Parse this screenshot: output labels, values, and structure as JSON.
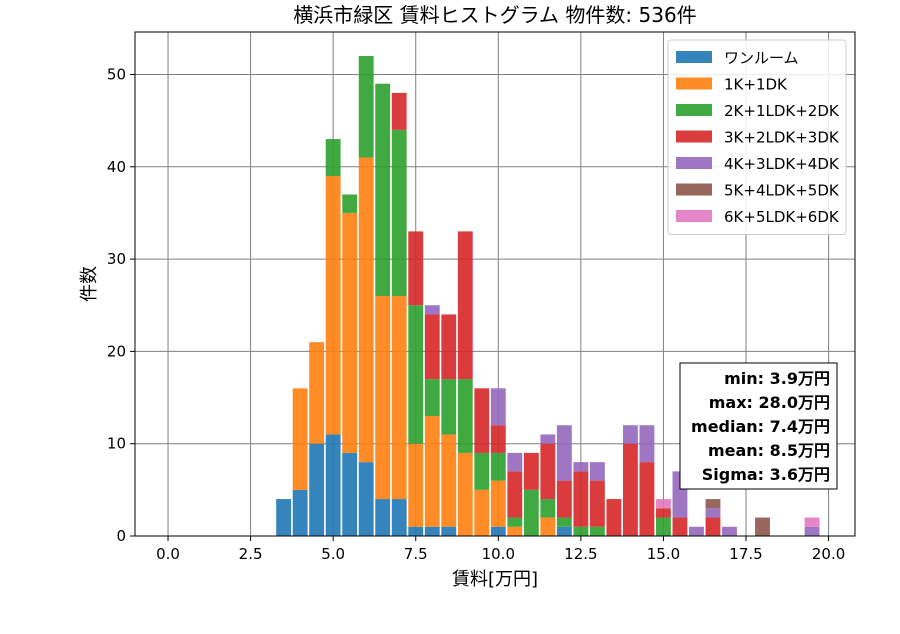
{
  "chart_data": {
    "type": "bar",
    "stacked": true,
    "title": "横浜市緑区 賃料ヒストグラム 物件数: 536件",
    "xlabel": "賃料[万円]",
    "ylabel": "件数",
    "xlim": [
      -1.0,
      20.8
    ],
    "ylim": [
      0,
      54.6
    ],
    "xticks": [
      0.0,
      2.5,
      5.0,
      7.5,
      10.0,
      12.5,
      15.0,
      17.5,
      20.0
    ],
    "xtick_labels": [
      "0.0",
      "2.5",
      "5.0",
      "7.5",
      "10.0",
      "12.5",
      "15.0",
      "17.5",
      "20.0"
    ],
    "yticks": [
      0,
      10,
      20,
      30,
      40,
      50
    ],
    "ytick_labels": [
      "0",
      "10",
      "20",
      "30",
      "40",
      "50"
    ],
    "grid": true,
    "legend_position": "top-right",
    "bin_width": 0.5,
    "x": [
      3.5,
      4.0,
      4.5,
      5.0,
      5.5,
      6.0,
      6.5,
      7.0,
      7.5,
      8.0,
      8.5,
      9.0,
      9.5,
      10.0,
      10.5,
      11.0,
      11.5,
      12.0,
      12.5,
      13.0,
      13.5,
      14.0,
      14.5,
      15.0,
      15.5,
      16.0,
      16.5,
      17.0,
      17.5,
      18.0,
      18.5,
      19.0,
      19.5
    ],
    "series": [
      {
        "name": "ワンルーム",
        "color": "#1f77b4",
        "values": [
          4,
          5,
          10,
          11,
          9,
          8,
          4,
          4,
          1,
          1,
          1,
          0,
          0,
          1,
          0,
          0,
          0,
          1,
          0,
          0,
          0,
          0,
          0,
          0,
          0,
          0,
          0,
          0,
          0,
          0,
          0,
          0,
          0
        ]
      },
      {
        "name": "1K+1DK",
        "color": "#ff7f0e",
        "values": [
          0,
          11,
          11,
          28,
          26,
          33,
          22,
          22,
          9,
          12,
          10,
          9,
          5,
          5,
          1,
          0,
          2,
          0,
          0,
          0,
          0,
          0,
          0,
          0,
          0,
          0,
          0,
          0,
          0,
          0,
          0,
          0,
          0
        ]
      },
      {
        "name": "2K+1LDK+2DK",
        "color": "#2ca02c",
        "values": [
          0,
          0,
          0,
          4,
          2,
          11,
          23,
          18,
          15,
          4,
          6,
          8,
          4,
          3,
          1,
          5,
          2,
          1,
          1,
          1,
          0,
          0,
          0,
          2,
          0,
          0,
          0,
          0,
          0,
          0,
          0,
          0,
          0
        ]
      },
      {
        "name": "3K+2LDK+3DK",
        "color": "#d62728",
        "values": [
          0,
          0,
          0,
          0,
          0,
          0,
          0,
          4,
          8,
          7,
          7,
          16,
          7,
          3,
          5,
          4,
          6,
          4,
          6,
          5,
          4,
          10,
          8,
          1,
          2,
          0,
          2,
          0,
          0,
          0,
          0,
          0,
          0
        ]
      },
      {
        "name": "4K+3LDK+4DK",
        "color": "#9467bd",
        "values": [
          0,
          0,
          0,
          0,
          0,
          0,
          0,
          0,
          0,
          1,
          0,
          0,
          0,
          4,
          2,
          0,
          1,
          6,
          1,
          2,
          0,
          2,
          4,
          0,
          5,
          1,
          1,
          1,
          0,
          0,
          0,
          0,
          1
        ]
      },
      {
        "name": "5K+4LDK+5DK",
        "color": "#8c564b",
        "values": [
          0,
          0,
          0,
          0,
          0,
          0,
          0,
          0,
          0,
          0,
          0,
          0,
          0,
          0,
          0,
          0,
          0,
          0,
          0,
          0,
          0,
          0,
          0,
          0,
          0,
          0,
          1,
          0,
          0,
          2,
          0,
          0,
          0
        ]
      },
      {
        "name": "6K+5LDK+6DK",
        "color": "#e377c2",
        "values": [
          0,
          0,
          0,
          0,
          0,
          0,
          0,
          0,
          0,
          0,
          0,
          0,
          0,
          0,
          0,
          0,
          0,
          0,
          0,
          0,
          0,
          0,
          0,
          1,
          0,
          0,
          0,
          0,
          0,
          0,
          0,
          0,
          1
        ]
      }
    ],
    "stats": [
      "min: 3.9万円",
      "max: 28.0万円",
      "median: 7.4万円",
      "mean: 8.5万円",
      "Sigma: 3.6万円"
    ]
  }
}
